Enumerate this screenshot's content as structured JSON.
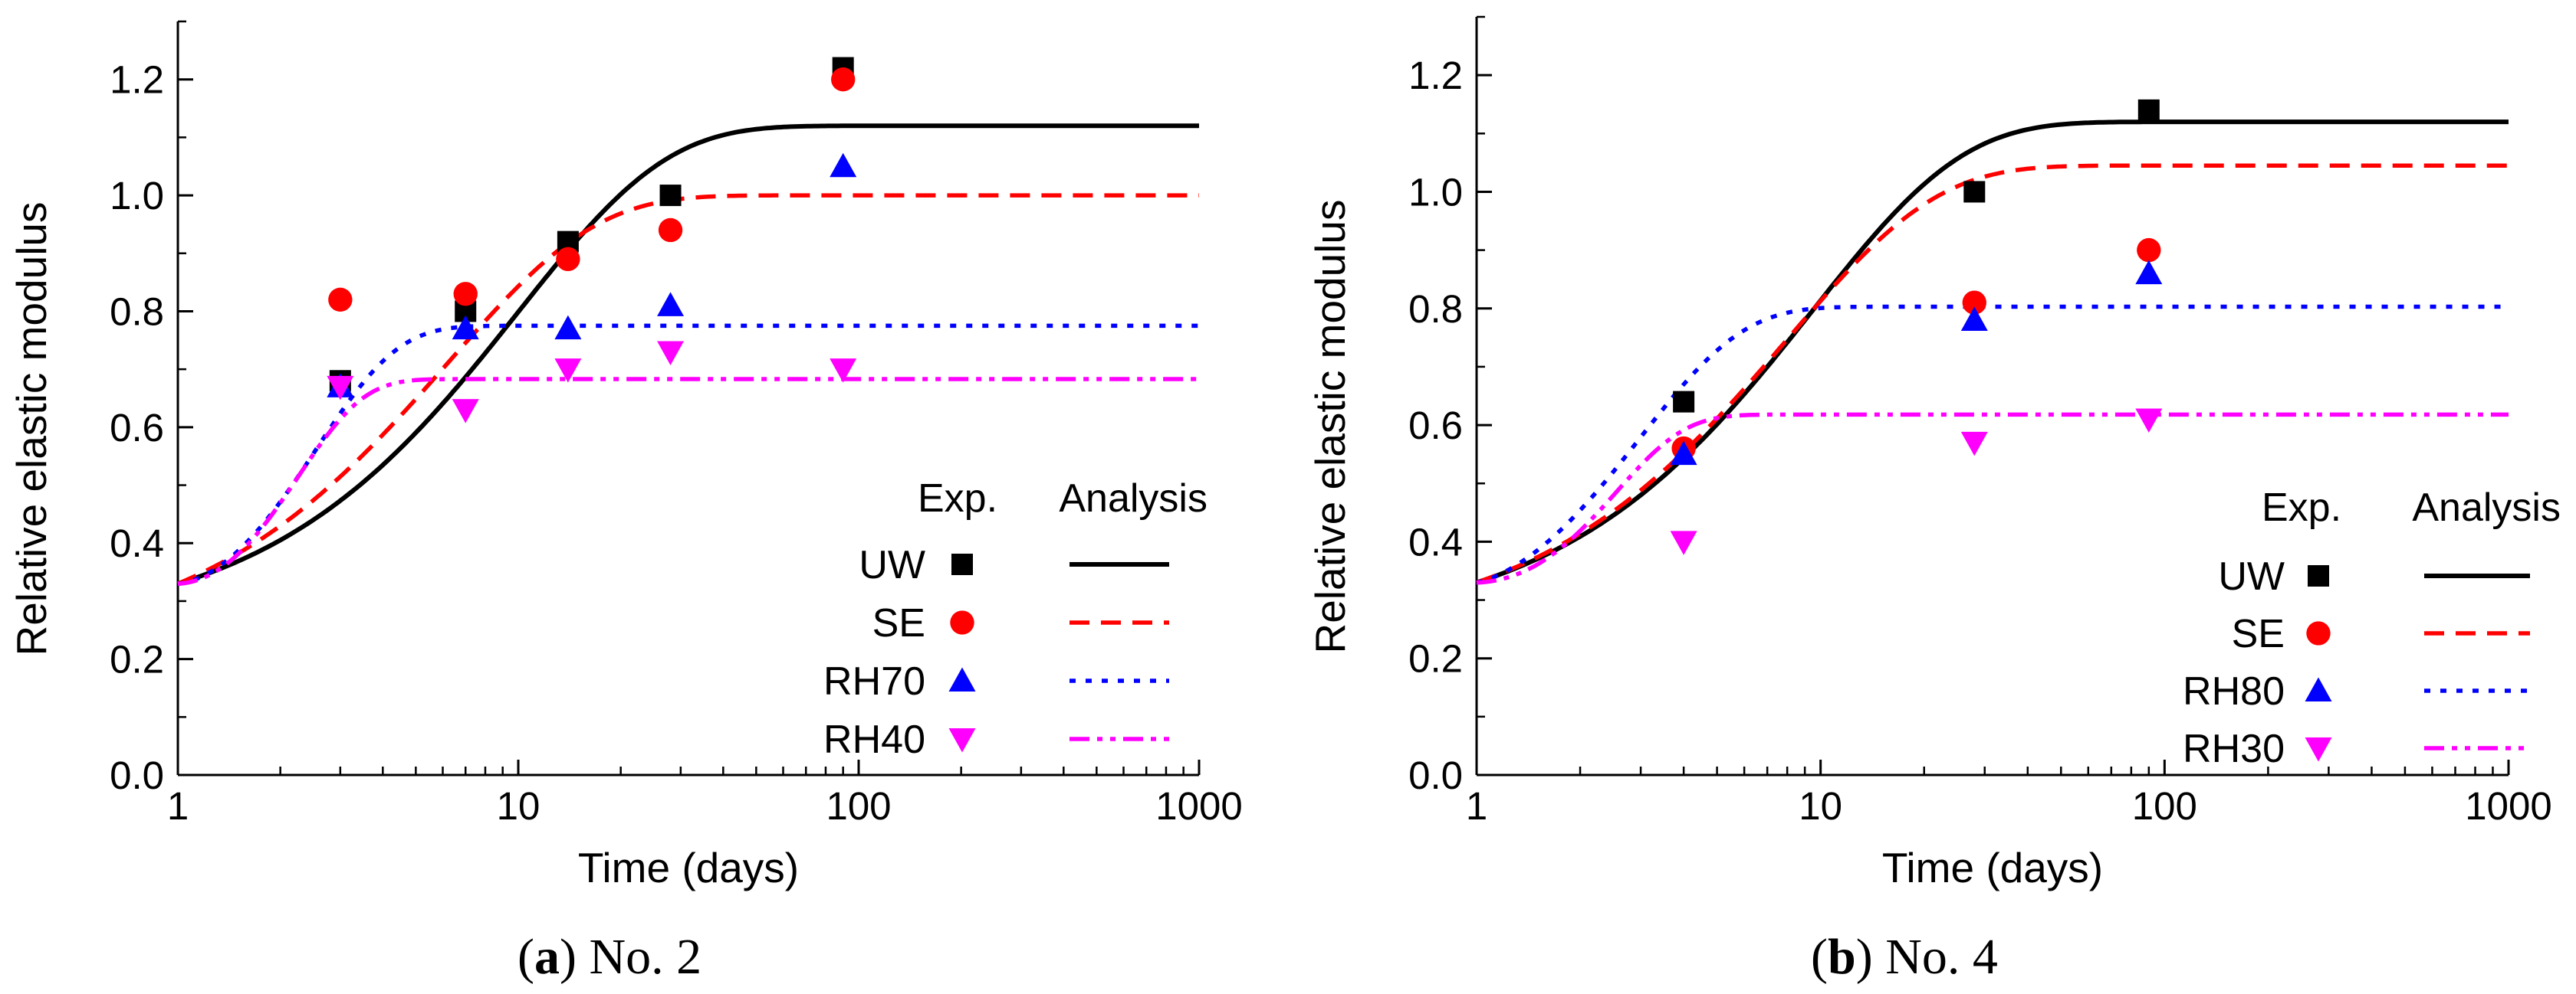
{
  "chart_data": [
    {
      "type": "scatter",
      "panel_letter": "a",
      "panel_title": "No. 2",
      "xlabel": "Time (days)",
      "ylabel": "Relative elastic modulus",
      "xscale": "log",
      "xlim": [
        1,
        1000
      ],
      "ylim": [
        0.0,
        1.3
      ],
      "xticks": [
        1,
        10,
        100,
        1000
      ],
      "xtick_labels": [
        "1",
        "10",
        "100",
        "1000"
      ],
      "yticks": [
        0.0,
        0.2,
        0.4,
        0.6,
        0.8,
        1.0,
        1.2
      ],
      "ytick_labels": [
        "0.0",
        "0.2",
        "0.4",
        "0.6",
        "0.8",
        "1.0",
        "1.2"
      ],
      "grid": false,
      "legend": {
        "placement": "bottom-right",
        "exp_header": "Exp.",
        "analysis_header": "Analysis"
      },
      "series": [
        {
          "name": "UW",
          "color": "#000000",
          "marker": "square",
          "line": "solid",
          "exp": {
            "x": [
              3,
              7,
              14,
              28,
              90
            ],
            "y": [
              0.68,
              0.8,
              0.92,
              1.0,
              1.22
            ]
          },
          "analysis": {
            "start": 0.33,
            "asymptote": 1.12,
            "tau": 10.0,
            "power": 1.0
          }
        },
        {
          "name": "SE",
          "color": "#ff0000",
          "marker": "circle",
          "line": "dashed",
          "exp": {
            "x": [
              3,
              7,
              14,
              28,
              90
            ],
            "y": [
              0.82,
              0.83,
              0.89,
              0.94,
              1.2
            ]
          },
          "analysis": {
            "start": 0.33,
            "asymptote": 1.0,
            "tau": 6.2,
            "power": 1.0
          }
        },
        {
          "name": "RH70",
          "color": "#0000ff",
          "marker": "triangle-up",
          "line": "dotted",
          "exp": {
            "x": [
              3,
              7,
              14,
              28,
              90
            ],
            "y": [
              0.67,
              0.77,
              0.77,
              0.81,
              1.05
            ]
          },
          "analysis": {
            "start": 0.33,
            "asymptote": 0.775,
            "tau": 1.9,
            "power": 1.5
          }
        },
        {
          "name": "RH40",
          "color": "#ff00ff",
          "marker": "triangle-down",
          "line": "dashdotdot",
          "exp": {
            "x": [
              3,
              7,
              14,
              28,
              90
            ],
            "y": [
              0.67,
              0.63,
              0.7,
              0.73,
              0.7
            ]
          },
          "analysis": {
            "start": 0.33,
            "asymptote": 0.683,
            "tau": 1.5,
            "power": 1.7
          }
        }
      ]
    },
    {
      "type": "scatter",
      "panel_letter": "b",
      "panel_title": "No. 4",
      "xlabel": "Time (days)",
      "ylabel": "Relative elastic modulus",
      "xscale": "log",
      "xlim": [
        1,
        1000
      ],
      "ylim": [
        0.0,
        1.3
      ],
      "xticks": [
        1,
        10,
        100,
        1000
      ],
      "xtick_labels": [
        "1",
        "10",
        "100",
        "1000"
      ],
      "yticks": [
        0.0,
        0.2,
        0.4,
        0.6,
        0.8,
        1.0,
        1.2
      ],
      "ytick_labels": [
        "0.0",
        "0.2",
        "0.4",
        "0.6",
        "0.8",
        "1.0",
        "1.2"
      ],
      "grid": false,
      "legend": {
        "placement": "bottom-right",
        "exp_header": "Exp.",
        "analysis_header": "Analysis"
      },
      "series": [
        {
          "name": "UW",
          "color": "#000000",
          "marker": "square",
          "line": "solid",
          "exp": {
            "x": [
              4,
              28,
              90
            ],
            "y": [
              0.64,
              1.0,
              1.14
            ]
          },
          "analysis": {
            "start": 0.33,
            "asymptote": 1.12,
            "tau": 9.5,
            "power": 1.0
          }
        },
        {
          "name": "SE",
          "color": "#ff0000",
          "marker": "circle",
          "line": "dashed",
          "exp": {
            "x": [
              4,
              28,
              90
            ],
            "y": [
              0.56,
              0.81,
              0.9
            ]
          },
          "analysis": {
            "start": 0.33,
            "asymptote": 1.045,
            "tau": 8.0,
            "power": 1.0
          }
        },
        {
          "name": "RH80",
          "color": "#0000ff",
          "marker": "triangle-up",
          "line": "dotted",
          "exp": {
            "x": [
              4,
              28,
              90
            ],
            "y": [
              0.55,
              0.78,
              0.86
            ]
          },
          "analysis": {
            "start": 0.33,
            "asymptote": 0.803,
            "tau": 2.5,
            "power": 1.3
          }
        },
        {
          "name": "RH30",
          "color": "#ff00ff",
          "marker": "triangle-down",
          "line": "dashdotdot",
          "exp": {
            "x": [
              4,
              28,
              90
            ],
            "y": [
              0.4,
              0.57,
              0.61
            ]
          },
          "analysis": {
            "start": 0.33,
            "asymptote": 0.618,
            "tau": 1.8,
            "power": 1.7
          }
        }
      ]
    }
  ]
}
